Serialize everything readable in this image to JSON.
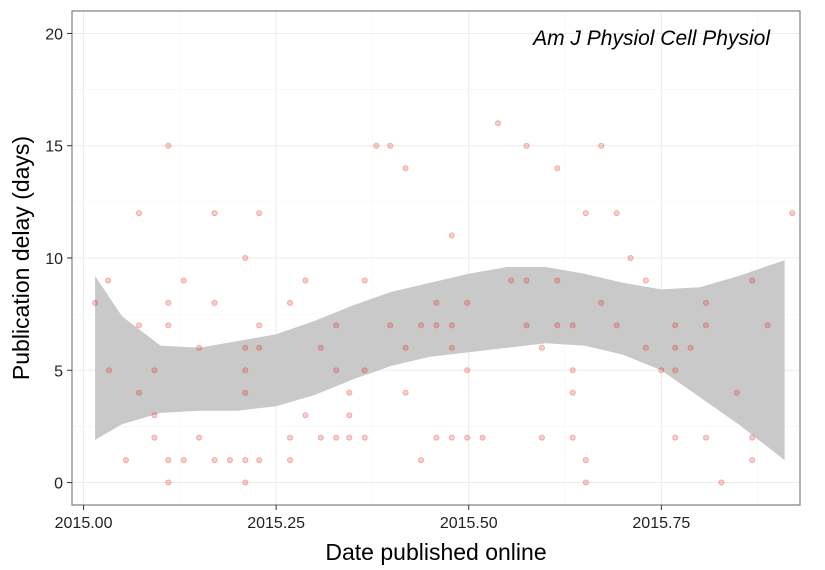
{
  "chart_data": {
    "type": "scatter",
    "annotation": "Am J Physiol Cell Physiol",
    "xlabel": "Date published online",
    "ylabel": "Publication delay (days)",
    "xlim": [
      2014.985,
      2015.93
    ],
    "ylim": [
      -1,
      21
    ],
    "x_ticks": [
      2015.0,
      2015.25,
      2015.5,
      2015.75
    ],
    "x_tick_labels": [
      "2015.00",
      "2015.25",
      "2015.50",
      "2015.75"
    ],
    "y_ticks": [
      0,
      5,
      10,
      15,
      20
    ],
    "y_tick_labels": [
      "0",
      "5",
      "10",
      "15",
      "20"
    ],
    "grid": true,
    "colors": {
      "points": "#e0201b",
      "band": "#c9c9c9",
      "grid": "#ececec",
      "border": "#7f7f7f"
    },
    "smooth_band": {
      "x": [
        2015.015,
        2015.05,
        2015.1,
        2015.15,
        2015.2,
        2015.25,
        2015.3,
        2015.35,
        2015.4,
        2015.45,
        2015.5,
        2015.55,
        2015.6,
        2015.65,
        2015.7,
        2015.75,
        2015.8,
        2015.85,
        2015.91
      ],
      "upper": [
        9.2,
        7.4,
        6.1,
        6.0,
        6.3,
        6.6,
        7.2,
        7.9,
        8.5,
        8.9,
        9.3,
        9.6,
        9.6,
        9.3,
        8.9,
        8.6,
        8.7,
        9.2,
        9.9
      ],
      "lower": [
        1.9,
        2.6,
        3.1,
        3.2,
        3.2,
        3.4,
        3.9,
        4.6,
        5.2,
        5.6,
        5.8,
        6.0,
        6.2,
        6.1,
        5.7,
        5.0,
        3.8,
        2.6,
        1.0
      ]
    },
    "series": [
      {
        "points": [
          [
            2015.015,
            8
          ],
          [
            2015.032,
            9
          ],
          [
            2015.033,
            5
          ],
          [
            2015.055,
            1
          ],
          [
            2015.072,
            12
          ],
          [
            2015.072,
            7
          ],
          [
            2015.072,
            4
          ],
          [
            2015.092,
            5
          ],
          [
            2015.092,
            3
          ],
          [
            2015.092,
            2
          ],
          [
            2015.11,
            15
          ],
          [
            2015.11,
            8
          ],
          [
            2015.11,
            7
          ],
          [
            2015.11,
            1
          ],
          [
            2015.11,
            0
          ],
          [
            2015.13,
            9
          ],
          [
            2015.13,
            1
          ],
          [
            2015.15,
            6
          ],
          [
            2015.15,
            2
          ],
          [
            2015.17,
            12
          ],
          [
            2015.17,
            8
          ],
          [
            2015.17,
            1
          ],
          [
            2015.19,
            1
          ],
          [
            2015.21,
            10
          ],
          [
            2015.21,
            6
          ],
          [
            2015.21,
            5
          ],
          [
            2015.21,
            4
          ],
          [
            2015.21,
            1
          ],
          [
            2015.21,
            0
          ],
          [
            2015.228,
            12
          ],
          [
            2015.228,
            7
          ],
          [
            2015.228,
            6
          ],
          [
            2015.228,
            1
          ],
          [
            2015.268,
            8
          ],
          [
            2015.268,
            2
          ],
          [
            2015.268,
            1
          ],
          [
            2015.288,
            9
          ],
          [
            2015.288,
            3
          ],
          [
            2015.308,
            6
          ],
          [
            2015.308,
            2
          ],
          [
            2015.328,
            7
          ],
          [
            2015.328,
            5
          ],
          [
            2015.328,
            2
          ],
          [
            2015.345,
            4
          ],
          [
            2015.345,
            3
          ],
          [
            2015.345,
            2
          ],
          [
            2015.365,
            9
          ],
          [
            2015.365,
            5
          ],
          [
            2015.365,
            2
          ],
          [
            2015.38,
            15
          ],
          [
            2015.398,
            15
          ],
          [
            2015.398,
            7
          ],
          [
            2015.418,
            14
          ],
          [
            2015.418,
            6
          ],
          [
            2015.418,
            4
          ],
          [
            2015.438,
            7
          ],
          [
            2015.438,
            1
          ],
          [
            2015.458,
            8
          ],
          [
            2015.458,
            7
          ],
          [
            2015.458,
            2
          ],
          [
            2015.478,
            11
          ],
          [
            2015.478,
            7
          ],
          [
            2015.478,
            6
          ],
          [
            2015.478,
            2
          ],
          [
            2015.498,
            8
          ],
          [
            2015.498,
            5
          ],
          [
            2015.498,
            2
          ],
          [
            2015.518,
            2
          ],
          [
            2015.538,
            16
          ],
          [
            2015.555,
            9
          ],
          [
            2015.575,
            15
          ],
          [
            2015.575,
            9
          ],
          [
            2015.575,
            7
          ],
          [
            2015.595,
            6
          ],
          [
            2015.595,
            2
          ],
          [
            2015.615,
            14
          ],
          [
            2015.615,
            9
          ],
          [
            2015.615,
            7
          ],
          [
            2015.635,
            7
          ],
          [
            2015.635,
            5
          ],
          [
            2015.635,
            4
          ],
          [
            2015.635,
            2
          ],
          [
            2015.652,
            12
          ],
          [
            2015.652,
            1
          ],
          [
            2015.652,
            0
          ],
          [
            2015.672,
            15
          ],
          [
            2015.672,
            8
          ],
          [
            2015.692,
            12
          ],
          [
            2015.692,
            7
          ],
          [
            2015.71,
            10
          ],
          [
            2015.73,
            9
          ],
          [
            2015.73,
            6
          ],
          [
            2015.75,
            5
          ],
          [
            2015.768,
            7
          ],
          [
            2015.768,
            6
          ],
          [
            2015.768,
            5
          ],
          [
            2015.768,
            2
          ],
          [
            2015.788,
            6
          ],
          [
            2015.808,
            8
          ],
          [
            2015.808,
            7
          ],
          [
            2015.808,
            2
          ],
          [
            2015.828,
            0
          ],
          [
            2015.848,
            4
          ],
          [
            2015.868,
            9
          ],
          [
            2015.868,
            2
          ],
          [
            2015.868,
            1
          ],
          [
            2015.888,
            7
          ],
          [
            2015.92,
            12
          ]
        ]
      }
    ]
  }
}
